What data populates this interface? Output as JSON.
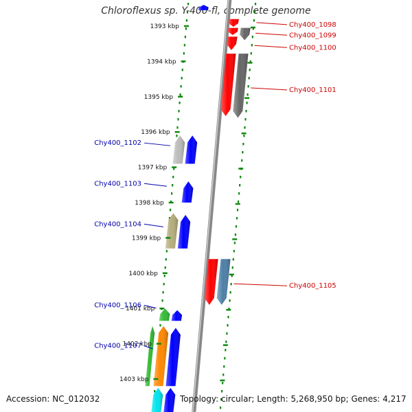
{
  "title": "Chloroflexus sp. Y-400-fl, complete genome",
  "accession_text": "Accession: NC_012032",
  "summary_text": "Topology: circular; Length: 5,268,950 bp; Genes: 4,217",
  "ticks": [
    {
      "label": "1393 kbp",
      "kbp": 1393
    },
    {
      "label": "1394 kbp",
      "kbp": 1394
    },
    {
      "label": "1395 kbp",
      "kbp": 1395
    },
    {
      "label": "1396 kbp",
      "kbp": 1396
    },
    {
      "label": "1397 kbp",
      "kbp": 1397
    },
    {
      "label": "1398 kbp",
      "kbp": 1398
    },
    {
      "label": "1399 kbp",
      "kbp": 1399
    },
    {
      "label": "1400 kbp",
      "kbp": 1400
    },
    {
      "label": "1401 kbp",
      "kbp": 1401
    },
    {
      "label": "1402 kbp",
      "kbp": 1402
    },
    {
      "label": "1403 kbp",
      "kbp": 1403
    }
  ],
  "genes": [
    {
      "name": "",
      "strand": "-",
      "start": 1392.4,
      "end": 1392.55,
      "color": "#0000ff",
      "track": 1
    },
    {
      "name": "Chy400_1098",
      "strand": "+",
      "start": 1392.8,
      "end": 1393.02,
      "color": "#ff0000",
      "track": 1
    },
    {
      "name": "Chy400_1099",
      "strand": "+",
      "start": 1393.05,
      "end": 1393.25,
      "color": "#ff0000",
      "track": 1
    },
    {
      "name": "",
      "strand": "+",
      "start": 1393.05,
      "end": 1393.4,
      "color": "#666666",
      "track": 2
    },
    {
      "name": "Chy400_1100",
      "strand": "+",
      "start": 1393.3,
      "end": 1393.68,
      "color": "#ff0000",
      "track": 1
    },
    {
      "name": "Chy400_1101",
      "strand": "+",
      "start": 1393.78,
      "end": 1395.55,
      "color": "#ff0000",
      "track": 1
    },
    {
      "name": "",
      "strand": "+",
      "start": 1393.78,
      "end": 1395.6,
      "color": "#666666",
      "track": 2
    },
    {
      "name": "",
      "strand": "-",
      "start": 1396.1,
      "end": 1396.9,
      "color": "#bbbbbb",
      "track": 2
    },
    {
      "name": "Chy400_1102",
      "strand": "-",
      "start": 1396.1,
      "end": 1396.9,
      "color": "#0000ff",
      "track": 1
    },
    {
      "name": "Chy400_1103",
      "strand": "-",
      "start": 1397.4,
      "end": 1398.0,
      "color": "#0000ff",
      "track": 1
    },
    {
      "name": "",
      "strand": "-",
      "start": 1398.3,
      "end": 1399.3,
      "color": "#b6ad7c",
      "track": 2
    },
    {
      "name": "Chy400_1104",
      "strand": "-",
      "start": 1398.35,
      "end": 1399.3,
      "color": "#0000ff",
      "track": 1
    },
    {
      "name": "Chy400_1105",
      "strand": "+",
      "start": 1399.6,
      "end": 1400.9,
      "color": "#ff0000",
      "track": 1
    },
    {
      "name": "",
      "strand": "+",
      "start": 1399.6,
      "end": 1400.9,
      "color": "#4d7fa6",
      "track": 2
    },
    {
      "name": "Chy400_1106",
      "strand": "-",
      "start": 1401.0,
      "end": 1401.35,
      "color": "#33bb33",
      "track": 2
    },
    {
      "name": "",
      "strand": "-",
      "start": 1401.05,
      "end": 1401.35,
      "color": "#0000ff",
      "track": 1
    },
    {
      "name": "",
      "strand": "-",
      "start": 1401.5,
      "end": 1403.2,
      "color": "#33bb33",
      "track": 3
    },
    {
      "name": "",
      "strand": "-",
      "start": 1401.5,
      "end": 1403.2,
      "color": "#ff8800",
      "track": 2
    },
    {
      "name": "Chy400_1107",
      "strand": "-",
      "start": 1401.55,
      "end": 1403.2,
      "color": "#0000ff",
      "track": 1
    },
    {
      "name": "",
      "strand": "-",
      "start": 1403.25,
      "end": 1404.0,
      "color": "#00e5ee",
      "track": 2
    },
    {
      "name": "",
      "strand": "-",
      "start": 1403.25,
      "end": 1404.0,
      "color": "#0000ff",
      "track": 1
    }
  ],
  "gene_labels": [
    {
      "text": "Chy400_1098",
      "kbp": 1392.9,
      "side": "right"
    },
    {
      "text": "Chy400_1099",
      "kbp": 1393.2,
      "side": "right"
    },
    {
      "text": "Chy400_1100",
      "kbp": 1393.55,
      "side": "right"
    },
    {
      "text": "Chy400_1101",
      "kbp": 1394.75,
      "side": "right"
    },
    {
      "text": "Chy400_1102",
      "kbp": 1396.35,
      "side": "left"
    },
    {
      "text": "Chy400_1103",
      "kbp": 1397.5,
      "side": "left"
    },
    {
      "text": "Chy400_1104",
      "kbp": 1398.65,
      "side": "left"
    },
    {
      "text": "Chy400_1105",
      "kbp": 1400.3,
      "side": "right"
    },
    {
      "text": "Chy400_1106",
      "kbp": 1400.95,
      "side": "left"
    },
    {
      "text": "Chy400_1107",
      "kbp": 1402.1,
      "side": "left"
    }
  ],
  "colors": {
    "forward_label": "#cc0000",
    "reverse_label": "#0000aa",
    "ruler": "#118811",
    "backbone": "#888888"
  }
}
